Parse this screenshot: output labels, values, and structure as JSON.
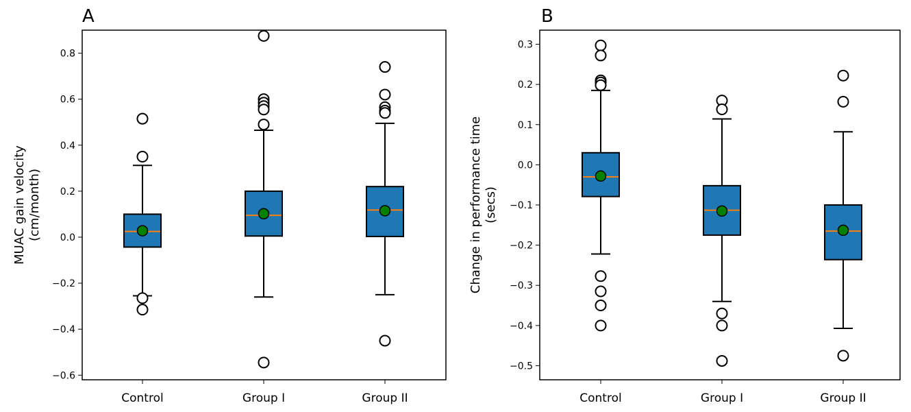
{
  "chart_data": [
    {
      "type": "box",
      "panel_label": "A",
      "ylabel_lines": [
        "MUAC gain velocity",
        "(cm/month)"
      ],
      "categories": [
        "Control",
        "Group I",
        "Group II"
      ],
      "ylim": [
        -0.62,
        0.9
      ],
      "yticks": [
        -0.6,
        -0.4,
        -0.2,
        0.0,
        0.2,
        0.4,
        0.6,
        0.8
      ],
      "ytick_labels": [
        "−0.6",
        "−0.4",
        "−0.2",
        "0.0",
        "0.2",
        "0.4",
        "0.6",
        "0.8"
      ],
      "grid": false,
      "boxes": [
        {
          "category": "Control",
          "whisker_low": -0.255,
          "q1": -0.043,
          "median": 0.025,
          "q3": 0.1,
          "whisker_high": 0.312,
          "mean": 0.028,
          "outliers": [
            0.515,
            0.35,
            -0.265,
            -0.315
          ]
        },
        {
          "category": "Group I",
          "whisker_low": -0.26,
          "q1": 0.005,
          "median": 0.095,
          "q3": 0.2,
          "whisker_high": 0.465,
          "mean": 0.102,
          "outliers": [
            0.875,
            0.6,
            0.585,
            0.57,
            0.555,
            0.49,
            -0.545
          ]
        },
        {
          "category": "Group II",
          "whisker_low": -0.25,
          "q1": 0.003,
          "median": 0.118,
          "q3": 0.22,
          "whisker_high": 0.495,
          "mean": 0.115,
          "outliers": [
            0.74,
            0.62,
            0.565,
            0.55,
            0.54,
            -0.45
          ]
        }
      ]
    },
    {
      "type": "box",
      "panel_label": "B",
      "ylabel_lines": [
        "Change in performance time",
        "(secs)"
      ],
      "categories": [
        "Control",
        "Group I",
        "Group II"
      ],
      "ylim": [
        -0.535,
        0.335
      ],
      "yticks": [
        -0.5,
        -0.4,
        -0.3,
        -0.2,
        -0.1,
        0.0,
        0.1,
        0.2,
        0.3
      ],
      "ytick_labels": [
        "−0.5",
        "−0.4",
        "−0.3",
        "−0.2",
        "−0.1",
        "0.0",
        "0.1",
        "0.2",
        "0.3"
      ],
      "grid": false,
      "boxes": [
        {
          "category": "Control",
          "whisker_low": -0.222,
          "q1": -0.079,
          "median": -0.03,
          "q3": 0.03,
          "whisker_high": 0.185,
          "mean": -0.028,
          "outliers": [
            0.297,
            0.272,
            0.21,
            0.205,
            0.198,
            -0.277,
            -0.315,
            -0.35,
            -0.4
          ]
        },
        {
          "category": "Group I",
          "whisker_low": -0.34,
          "q1": -0.175,
          "median": -0.113,
          "q3": -0.052,
          "whisker_high": 0.114,
          "mean": -0.115,
          "outliers": [
            0.16,
            0.138,
            -0.37,
            -0.4,
            -0.488
          ]
        },
        {
          "category": "Group II",
          "whisker_low": -0.407,
          "q1": -0.236,
          "median": -0.165,
          "q3": -0.1,
          "whisker_high": 0.082,
          "mean": -0.163,
          "outliers": [
            0.222,
            0.157,
            -0.475
          ]
        }
      ]
    }
  ],
  "colors": {
    "box_fill": "#1f77b4",
    "median": "#ff7f0e",
    "mean_marker": "#008000",
    "line": "#000000",
    "outlier_fill": "#ffffff"
  }
}
